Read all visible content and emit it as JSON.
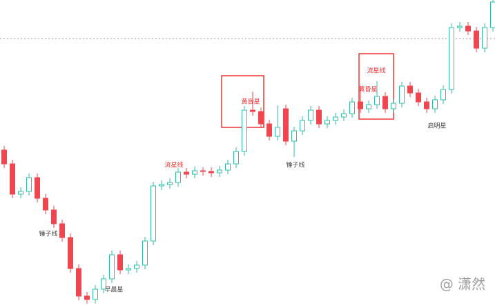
{
  "chart_data": {
    "type": "candlestick",
    "up_color": "#2fbfa5",
    "down_color": "#f0464f",
    "ylim": [
      0,
      443
    ],
    "open": [
      225,
      205,
      161,
      165,
      185,
      155,
      138,
      118,
      98,
      53,
      13,
      8,
      23,
      38,
      73,
      51,
      53,
      58,
      93,
      173,
      175,
      178,
      193,
      190,
      195,
      194,
      192,
      196,
      205,
      223,
      283,
      281,
      263,
      245,
      285,
      238,
      253,
      268,
      283,
      263,
      268,
      273,
      278,
      295,
      285,
      291,
      303,
      285,
      293,
      318,
      308,
      295,
      285,
      298,
      313,
      403,
      405,
      398,
      373,
      403
    ],
    "high": [
      231,
      211,
      171,
      191,
      191,
      161,
      144,
      124,
      104,
      59,
      19,
      29,
      44,
      79,
      79,
      59,
      64,
      99,
      179,
      181,
      184,
      199,
      199,
      201,
      200,
      200,
      202,
      211,
      229,
      289,
      310,
      287,
      269,
      290,
      291,
      259,
      274,
      289,
      289,
      274,
      279,
      284,
      301,
      315,
      297,
      325,
      309,
      299,
      324,
      324,
      314,
      301,
      304,
      319,
      409,
      411,
      411,
      404,
      409,
      443
    ],
    "low": [
      199,
      155,
      155,
      159,
      149,
      132,
      112,
      92,
      47,
      7,
      2,
      2,
      17,
      32,
      45,
      45,
      47,
      52,
      87,
      167,
      169,
      172,
      184,
      184,
      188,
      186,
      186,
      190,
      199,
      217,
      275,
      257,
      239,
      239,
      232,
      215,
      247,
      262,
      257,
      257,
      262,
      267,
      272,
      279,
      279,
      285,
      279,
      279,
      287,
      302,
      289,
      279,
      279,
      292,
      307,
      397,
      392,
      367,
      367,
      397
    ],
    "close": [
      205,
      161,
      165,
      185,
      155,
      138,
      118,
      98,
      53,
      13,
      8,
      23,
      38,
      73,
      51,
      53,
      58,
      93,
      173,
      175,
      178,
      193,
      190,
      195,
      194,
      192,
      196,
      205,
      223,
      283,
      281,
      263,
      245,
      258,
      238,
      253,
      268,
      283,
      263,
      268,
      273,
      278,
      295,
      285,
      291,
      303,
      285,
      293,
      318,
      308,
      295,
      285,
      298,
      313,
      403,
      405,
      398,
      373,
      403,
      440
    ],
    "annotations": [
      "锤子线",
      "早晨星",
      "流星线",
      "黄昏星",
      "锤子线",
      "黄昏星",
      "流星线",
      "启明星"
    ],
    "watermark": "@ 潇然"
  }
}
